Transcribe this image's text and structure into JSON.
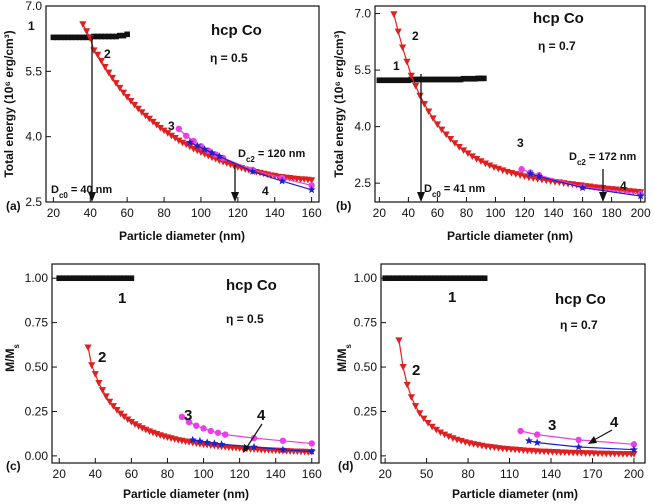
{
  "figure": {
    "xlabel": "Particle diameter (nm)",
    "colors": {
      "red": "#e02020",
      "magenta": "#e640e6",
      "blue": "#1a22c8",
      "black": "#111111"
    }
  },
  "chart_data": [
    {
      "type": "line",
      "panel_label": "(a)",
      "title": "hcp Co",
      "eta_label": "η = 0.5",
      "xlabel": "Particle diameter (nm)",
      "ylabel": "Total energy (10⁶ erg/cm³)",
      "xlim": [
        16,
        164
      ],
      "ylim": [
        2.5,
        7.0
      ],
      "xticks": [
        20,
        40,
        60,
        80,
        100,
        120,
        140,
        160
      ],
      "yticks": [
        2.5,
        4.0,
        5.5,
        7.0
      ],
      "series": [
        {
          "name": "1",
          "marker": "square",
          "color": "#111111",
          "x": [
            20,
            22,
            24,
            26,
            28,
            30,
            32,
            34,
            36,
            38,
            40,
            42,
            44,
            46,
            48,
            50,
            52,
            54,
            56,
            58,
            60
          ],
          "y": [
            6.28,
            6.28,
            6.28,
            6.28,
            6.28,
            6.28,
            6.28,
            6.28,
            6.28,
            6.28,
            6.28,
            6.3,
            6.3,
            6.3,
            6.3,
            6.3,
            6.3,
            6.3,
            6.32,
            6.32,
            6.35
          ]
        },
        {
          "name": "2",
          "marker": "triangle-down",
          "color": "#e02020",
          "x": [
            36,
            38,
            40,
            42,
            44,
            46,
            48,
            50,
            52,
            54,
            56,
            58,
            60,
            62,
            64,
            66,
            68,
            70,
            72,
            74,
            76,
            78,
            80,
            82,
            84,
            86,
            88,
            90,
            92,
            94,
            96,
            98,
            100,
            102,
            104,
            106,
            108,
            110,
            112,
            114,
            116,
            118,
            120,
            122,
            124,
            126,
            128,
            130,
            132,
            134,
            136,
            138,
            140,
            142,
            144,
            146,
            148,
            150,
            152,
            154,
            156,
            158,
            160
          ],
          "y": [
            6.58,
            6.42,
            6.26,
            5.98,
            5.88,
            5.74,
            5.6,
            5.47,
            5.35,
            5.23,
            5.12,
            5.01,
            4.91,
            4.82,
            4.73,
            4.64,
            4.56,
            4.48,
            4.41,
            4.34,
            4.27,
            4.2,
            4.14,
            4.08,
            4.02,
            3.97,
            3.91,
            3.86,
            3.82,
            3.77,
            3.72,
            3.68,
            3.64,
            3.6,
            3.56,
            3.52,
            3.49,
            3.45,
            3.42,
            3.39,
            3.36,
            3.33,
            3.3,
            3.28,
            3.25,
            3.23,
            3.21,
            3.19,
            3.17,
            3.15,
            3.13,
            3.11,
            3.1,
            3.08,
            3.07,
            3.06,
            3.05,
            3.04,
            3.03,
            3.02,
            3.02,
            3.01,
            3.0
          ]
        },
        {
          "name": "3",
          "marker": "circle",
          "color": "#e640e6",
          "x": [
            88,
            92,
            96,
            100,
            104,
            108,
            112,
            128,
            144,
            160
          ],
          "y": [
            4.18,
            4.02,
            3.9,
            3.78,
            3.68,
            3.59,
            3.51,
            3.24,
            3.05,
            2.88
          ]
        },
        {
          "name": "4",
          "marker": "star",
          "color": "#1a22c8",
          "x": [
            94,
            98,
            102,
            106,
            110,
            128,
            144,
            160
          ],
          "y": [
            3.87,
            3.79,
            3.71,
            3.63,
            3.55,
            3.2,
            2.98,
            2.78
          ]
        }
      ],
      "annotations": {
        "dc0_label": "DC0 = 40 nm",
        "dc0_x": 40,
        "dc2_label": "DC2 = 120 nm",
        "dc2_x": 120
      }
    },
    {
      "type": "line",
      "panel_label": "(b)",
      "title": "hcp Co",
      "eta_label": "η = 0.7",
      "xlabel": "Particle diameter (nm)",
      "ylabel": "Total energy (10⁶ erg/cm³)",
      "xlim": [
        17,
        203
      ],
      "ylim": [
        2.0,
        7.2
      ],
      "xticks": [
        20,
        40,
        60,
        80,
        100,
        120,
        140,
        160,
        180,
        200
      ],
      "yticks": [
        2.5,
        4.0,
        5.5,
        7.0
      ],
      "series": [
        {
          "name": "1",
          "marker": "square",
          "color": "#111111",
          "x": [
            20,
            22,
            24,
            26,
            28,
            30,
            32,
            34,
            36,
            38,
            40,
            42,
            44,
            46,
            48,
            50,
            52,
            54,
            56,
            58,
            60,
            62,
            64,
            66,
            68,
            70,
            72,
            74,
            76,
            78,
            80,
            82,
            84,
            86,
            88,
            90,
            92
          ],
          "y": [
            5.23,
            5.23,
            5.23,
            5.23,
            5.23,
            5.23,
            5.23,
            5.23,
            5.23,
            5.23,
            5.23,
            5.25,
            5.25,
            5.25,
            5.25,
            5.25,
            5.25,
            5.25,
            5.25,
            5.25,
            5.25,
            5.25,
            5.25,
            5.25,
            5.25,
            5.25,
            5.25,
            5.25,
            5.25,
            5.27,
            5.27,
            5.27,
            5.27,
            5.27,
            5.28,
            5.28,
            5.28
          ]
        },
        {
          "name": "2",
          "marker": "triangle-down",
          "color": "#e02020",
          "x": [
            30,
            33,
            36,
            39,
            42,
            45,
            48,
            51,
            54,
            57,
            60,
            63,
            66,
            69,
            72,
            75,
            78,
            81,
            84,
            87,
            90,
            93,
            96,
            99,
            102,
            105,
            108,
            111,
            114,
            117,
            120,
            123,
            126,
            129,
            132,
            135,
            138,
            141,
            144,
            147,
            150,
            153,
            156,
            159,
            162,
            165,
            168,
            171,
            174,
            177,
            180,
            183,
            186,
            189,
            192,
            195,
            198,
            200
          ],
          "y": [
            6.98,
            6.52,
            6.1,
            5.72,
            5.35,
            5.08,
            4.82,
            4.6,
            4.4,
            4.22,
            4.06,
            3.92,
            3.79,
            3.67,
            3.56,
            3.46,
            3.37,
            3.29,
            3.21,
            3.14,
            3.08,
            3.02,
            2.97,
            2.92,
            2.88,
            2.84,
            2.8,
            2.77,
            2.74,
            2.71,
            2.68,
            2.65,
            2.63,
            2.61,
            2.59,
            2.57,
            2.55,
            2.53,
            2.52,
            2.5,
            2.48,
            2.47,
            2.45,
            2.44,
            2.42,
            2.41,
            2.39,
            2.38,
            2.37,
            2.35,
            2.34,
            2.33,
            2.31,
            2.3,
            2.29,
            2.28,
            2.27,
            2.26
          ]
        },
        {
          "name": "3",
          "marker": "circle",
          "color": "#e640e6",
          "x": [
            118,
            124,
            130,
            160,
            200
          ],
          "y": [
            2.87,
            2.78,
            2.71,
            2.4,
            2.21
          ]
        },
        {
          "name": "4",
          "marker": "star",
          "color": "#1a22c8",
          "x": [
            124,
            130,
            160,
            200
          ],
          "y": [
            2.75,
            2.68,
            2.38,
            2.16
          ]
        }
      ],
      "annotations": {
        "dc0_label": "DC0 = 41 nm",
        "dc0_x": 41,
        "dc2_label": "DC2 = 172 nm",
        "dc2_x": 172
      }
    },
    {
      "type": "line",
      "panel_label": "(c)",
      "title": "hcp Co",
      "eta_label": "η = 0.5",
      "xlabel": "Particle diameter (nm)",
      "ylabel": "M/Ms",
      "xlim": [
        16,
        164
      ],
      "ylim": [
        -0.04,
        1.08
      ],
      "xticks": [
        20,
        40,
        60,
        80,
        100,
        120,
        140,
        160
      ],
      "yticks": [
        0.0,
        0.25,
        0.5,
        0.75,
        1.0
      ],
      "ytick_labels": [
        "0.00",
        "0.25",
        "0.50",
        "0.75",
        "1.00"
      ],
      "series": [
        {
          "name": "1",
          "marker": "square",
          "color": "#111111",
          "x": [
            20,
            22,
            24,
            26,
            28,
            30,
            32,
            34,
            36,
            38,
            40,
            42,
            44,
            46,
            48,
            50,
            52,
            54,
            56,
            58,
            60
          ],
          "y": [
            1,
            1,
            1,
            1,
            1,
            1,
            1,
            1,
            1,
            1,
            1,
            1,
            1,
            1,
            1,
            1,
            1,
            1,
            1,
            1,
            1
          ]
        },
        {
          "name": "2",
          "marker": "triangle-down",
          "color": "#e02020",
          "x": [
            36,
            38,
            40,
            42,
            44,
            46,
            48,
            50,
            52,
            54,
            56,
            58,
            60,
            62,
            64,
            66,
            68,
            70,
            72,
            74,
            76,
            78,
            80,
            82,
            84,
            86,
            88,
            90,
            92,
            94,
            96,
            98,
            100,
            102,
            104,
            106,
            108,
            110,
            112,
            114,
            116,
            118,
            120,
            122,
            124,
            126,
            128,
            130,
            132,
            134,
            136,
            138,
            140,
            142,
            144,
            146,
            148,
            150,
            152,
            154,
            156,
            158,
            160
          ],
          "y": [
            0.61,
            0.51,
            0.46,
            0.41,
            0.37,
            0.335,
            0.305,
            0.28,
            0.258,
            0.238,
            0.221,
            0.205,
            0.191,
            0.178,
            0.167,
            0.156,
            0.147,
            0.138,
            0.13,
            0.123,
            0.116,
            0.11,
            0.104,
            0.099,
            0.094,
            0.089,
            0.085,
            0.081,
            0.077,
            0.074,
            0.07,
            0.067,
            0.064,
            0.062,
            0.059,
            0.057,
            0.054,
            0.052,
            0.05,
            0.048,
            0.046,
            0.045,
            0.043,
            0.041,
            0.04,
            0.038,
            0.037,
            0.036,
            0.034,
            0.033,
            0.032,
            0.031,
            0.03,
            0.029,
            0.028,
            0.027,
            0.026,
            0.025,
            0.025,
            0.024,
            0.023,
            0.022,
            0.022
          ]
        },
        {
          "name": "3",
          "marker": "circle",
          "color": "#e640e6",
          "x": [
            88,
            92,
            96,
            100,
            104,
            108,
            112,
            128,
            144,
            160
          ],
          "y": [
            0.22,
            0.19,
            0.17,
            0.155,
            0.14,
            0.13,
            0.12,
            0.1,
            0.085,
            0.07
          ]
        },
        {
          "name": "4",
          "marker": "star",
          "color": "#1a22c8",
          "x": [
            94,
            98,
            102,
            106,
            110,
            128,
            144,
            160
          ],
          "y": [
            0.09,
            0.083,
            0.076,
            0.07,
            0.065,
            0.05,
            0.035,
            0.025
          ]
        }
      ]
    },
    {
      "type": "line",
      "panel_label": "(d)",
      "title": "hcp Co",
      "eta_label": "η = 0.7",
      "xlabel": "Particle diameter (nm)",
      "ylabel": "M/Ms",
      "xlim": [
        17,
        208
      ],
      "ylim": [
        -0.04,
        1.08
      ],
      "xticks": [
        20,
        50,
        80,
        110,
        140,
        170,
        200
      ],
      "yticks": [
        0.0,
        0.25,
        0.5,
        0.75,
        1.0
      ],
      "ytick_labels": [
        "0.00",
        "0.25",
        "0.50",
        "0.75",
        "1.00"
      ],
      "series": [
        {
          "name": "1",
          "marker": "square",
          "color": "#111111",
          "x": [
            20,
            23,
            26,
            29,
            32,
            35,
            38,
            41,
            44,
            47,
            50,
            53,
            56,
            59,
            62,
            65,
            68,
            71,
            74,
            77,
            80,
            83,
            86,
            89,
            92
          ],
          "y": [
            1,
            1,
            1,
            1,
            1,
            1,
            1,
            1,
            1,
            1,
            1,
            1,
            1,
            1,
            1,
            1,
            1,
            1,
            1,
            1,
            1,
            1,
            1,
            1,
            1
          ]
        },
        {
          "name": "2",
          "marker": "triangle-down",
          "color": "#e02020",
          "x": [
            30,
            33,
            36,
            39,
            42,
            45,
            48,
            51,
            54,
            57,
            60,
            63,
            66,
            69,
            72,
            75,
            78,
            81,
            84,
            87,
            90,
            93,
            96,
            99,
            102,
            105,
            108,
            111,
            114,
            117,
            120,
            123,
            126,
            129,
            132,
            135,
            138,
            141,
            144,
            147,
            150,
            153,
            156,
            159,
            162,
            165,
            168,
            171,
            174,
            177,
            180,
            183,
            186,
            189,
            192,
            195,
            198,
            200
          ],
          "y": [
            0.65,
            0.5,
            0.4,
            0.33,
            0.28,
            0.24,
            0.21,
            0.185,
            0.164,
            0.147,
            0.132,
            0.12,
            0.109,
            0.099,
            0.091,
            0.084,
            0.077,
            0.071,
            0.066,
            0.062,
            0.057,
            0.053,
            0.05,
            0.047,
            0.044,
            0.041,
            0.039,
            0.037,
            0.035,
            0.033,
            0.031,
            0.029,
            0.028,
            0.026,
            0.025,
            0.024,
            0.023,
            0.022,
            0.021,
            0.02,
            0.019,
            0.018,
            0.017,
            0.017,
            0.016,
            0.015,
            0.015,
            0.014,
            0.013,
            0.013,
            0.012,
            0.012,
            0.011,
            0.011,
            0.01,
            0.01,
            0.01,
            0.01
          ]
        },
        {
          "name": "3",
          "marker": "circle",
          "color": "#e640e6",
          "x": [
            118,
            130,
            160,
            200
          ],
          "y": [
            0.14,
            0.12,
            0.09,
            0.065
          ]
        },
        {
          "name": "4",
          "marker": "star",
          "color": "#1a22c8",
          "x": [
            124,
            130,
            160,
            200
          ],
          "y": [
            0.085,
            0.075,
            0.05,
            0.035
          ]
        }
      ]
    }
  ]
}
